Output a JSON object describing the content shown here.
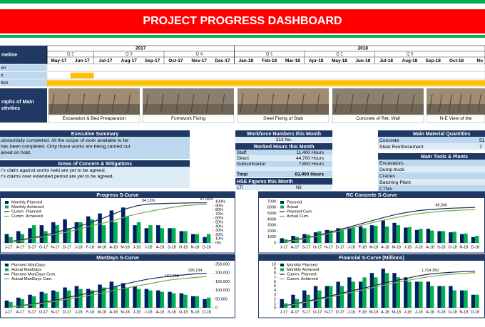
{
  "header": {
    "title": "PROJECT PROGRESS DASHBOARD"
  },
  "timeline": {
    "title": "meline",
    "years": [
      "2017",
      "2018"
    ],
    "quarters": [
      "Q 2",
      "Q 3",
      "Q 4",
      "Q 1",
      "Q 2",
      "Q 3"
    ],
    "months": [
      "May-17",
      "Jun-17",
      "Jul-17",
      "Aug-17",
      "Sep-17",
      "Oct-17",
      "Nov-17",
      "Dec-17",
      "Jan-18",
      "Feb-18",
      "Mar-18",
      "Apr-18",
      "May-18",
      "Jun-18",
      "Jul-18",
      "Aug-18",
      "Sep-18",
      "Oct-18",
      "No"
    ],
    "rows": [
      {
        "label": "on"
      },
      {
        "label": "n",
        "bar": [
          "Jun-17",
          "Jun-17"
        ]
      },
      {
        "label": "tion",
        "bar": [
          "May-17",
          "No"
        ]
      }
    ]
  },
  "photos": {
    "label": [
      "raphs of Main",
      "ctivities"
    ],
    "captions": [
      "Excavation & Bed Preaparaton",
      "Formwork Fixing",
      "Steel Fixing of Slab",
      "Concrete of Ret. Wall",
      "N-E View of the"
    ]
  },
  "summary": {
    "title": "Executive Summary",
    "lines": [
      "ubstantially completed. All the scope of work available to be",
      "has been completed. Only those works are being carried out",
      "ained on hold."
    ]
  },
  "concerns": {
    "title": "Areas of Concern & Mitigations",
    "lines": [
      "r's claim against works held are yet to be agreed.",
      "r's claims over extended period are yet to be agreed."
    ]
  },
  "workforce": {
    "title": "Workforce Numbers this Month",
    "value": "313 No.",
    "hours_title": "Worked Hours this Month",
    "hours": [
      [
        "Staff",
        "11,400 Hours"
      ],
      [
        "Direct",
        "44,700 Hours"
      ],
      [
        "Subcontractor",
        "7,800 Hours"
      ]
    ],
    "total": [
      "Total",
      "63,900 Hours"
    ],
    "hse_title": "HSE Figures this Month",
    "hse": [
      [
        "LTI",
        "Nil"
      ]
    ]
  },
  "materials": {
    "title": "Main Material Quantities",
    "rows": [
      [
        "Concrete",
        "51"
      ],
      [
        "Steel Reinforcement",
        "7"
      ]
    ]
  },
  "tools": {
    "title": "Main Tools & Plants",
    "items": [
      "Excavators",
      "Dump truck",
      "Cranes",
      "Batching Plant",
      "CTMs"
    ]
  },
  "chart_data": [
    {
      "type": "combo",
      "title": "Progress S-Curve",
      "categories": [
        "J-17",
        "A-17",
        "S-17",
        "O-17",
        "N-17",
        "D-17",
        "J-18",
        "F-18",
        "M-18",
        "A-18",
        "M-18",
        "J-18",
        "J-18",
        "A-18",
        "S-18",
        "O-18",
        "N-18",
        "D-18"
      ],
      "ylim": [
        0,
        14
      ],
      "y2lim": [
        0,
        100
      ],
      "y2ticks": [
        {
          "value": 0,
          "label": "0%"
        },
        {
          "value": 10,
          "label": "10%"
        },
        {
          "value": 20,
          "label": "20%"
        },
        {
          "value": 30,
          "label": "30%"
        },
        {
          "value": 40,
          "label": "40%"
        },
        {
          "value": 50,
          "label": "50%"
        },
        {
          "value": 60,
          "label": "60%"
        },
        {
          "value": 70,
          "label": "70%"
        },
        {
          "value": 80,
          "label": "80%"
        },
        {
          "value": 90,
          "label": "90%"
        },
        {
          "value": 100,
          "label": "100%"
        }
      ],
      "series": [
        {
          "name": "Monthly Planned",
          "mark": "bar",
          "color": "#002060",
          "values": [
            3,
            4,
            5,
            6,
            7,
            8,
            7,
            9,
            10,
            11,
            12,
            6,
            5,
            6,
            5,
            4,
            3,
            2
          ]
        },
        {
          "name": "Monthly Achieved",
          "mark": "bar",
          "color": "#00b050",
          "values": [
            2,
            3,
            6,
            4,
            6,
            5,
            7,
            8,
            6,
            7,
            9,
            7,
            6,
            5,
            5,
            4,
            3,
            3
          ]
        },
        {
          "name": "Cumm. Planned",
          "mark": "line",
          "axis": "y2",
          "color": "#1f1f5f",
          "values": [
            3,
            7,
            12,
            18,
            25,
            33,
            40,
            49,
            59,
            70,
            82,
            90,
            94.13,
            95,
            96,
            96.5,
            97,
            97.06
          ],
          "value_labels": [
            null,
            null,
            null,
            null,
            null,
            null,
            null,
            null,
            null,
            null,
            null,
            null,
            "94.13%",
            null,
            null,
            null,
            null,
            "97.06%"
          ]
        },
        {
          "name": "Cumm. Achieved",
          "mark": "line",
          "axis": "y2",
          "color": "#70ad47",
          "values": [
            2,
            5,
            11,
            15,
            21,
            26,
            33,
            41,
            47,
            54,
            63,
            70,
            76,
            81,
            86,
            90,
            92,
            94
          ]
        }
      ]
    },
    {
      "type": "combo",
      "title": "RC Concrete S-Curve",
      "categories": [
        "J-17",
        "A-17",
        "S-17",
        "O-17",
        "N-17",
        "D-17",
        "J-18",
        "F-18",
        "M-18",
        "A-18",
        "M-18",
        "J-18",
        "J-18",
        "A-18",
        "S-18",
        "O-18",
        "N-18",
        "D-18"
      ],
      "ylim": [
        0,
        7000
      ],
      "yticks": [
        0,
        1000,
        2000,
        3000,
        4000,
        5000,
        6000,
        7000
      ],
      "y2lim": [
        0,
        60000
      ],
      "series": [
        {
          "name": "Planned",
          "mark": "bar",
          "color": "#002060",
          "values": [
            800,
            1200,
            1500,
            1800,
            2200,
            2500,
            2600,
            2800,
            3000,
            3800,
            3400,
            2600,
            2200,
            2400,
            2000,
            1800,
            1500,
            1000
          ]
        },
        {
          "name": "Actual",
          "mark": "bar",
          "color": "#00b050",
          "values": [
            600,
            1000,
            1400,
            2000,
            2100,
            2300,
            2700,
            2500,
            2900,
            2800,
            3000,
            2700,
            2400,
            2100,
            2000,
            1900,
            1600,
            1200
          ]
        },
        {
          "name": "Planned Cum.",
          "mark": "line",
          "axis": "y2",
          "color": "#1f1f5f",
          "values": [
            2000,
            4500,
            7500,
            11000,
            15000,
            19500,
            24000,
            28500,
            33000,
            37500,
            41500,
            44500,
            47000,
            48500,
            49566,
            50500,
            51000,
            51500
          ],
          "value_labels": [
            null,
            null,
            null,
            null,
            null,
            null,
            null,
            null,
            null,
            null,
            null,
            null,
            null,
            null,
            "49,566",
            null,
            null,
            null
          ]
        },
        {
          "name": "Actual Cum.",
          "mark": "line",
          "axis": "y2",
          "color": "#70ad47",
          "values": [
            1500,
            3500,
            6500,
            10000,
            13500,
            17500,
            22000,
            26000,
            30000,
            33500,
            37000,
            40000,
            42500,
            44500,
            46000,
            47000,
            47800,
            48200
          ]
        }
      ]
    },
    {
      "type": "combo",
      "title": "ManDays S-Curve",
      "categories": [
        "J-17",
        "A-17",
        "S-17",
        "O-17",
        "N-17",
        "D-17",
        "J-18",
        "F-18",
        "M-18",
        "A-18",
        "M-18",
        "J-18",
        "J-18",
        "A-18",
        "S-18",
        "O-18",
        "N-18",
        "D-18"
      ],
      "ylim": [
        0,
        30000
      ],
      "y2lim": [
        0,
        250000
      ],
      "y2ticks": [
        0,
        {
          "value": 50000,
          "label": "50,000"
        },
        {
          "value": 100000,
          "label": "100,000"
        },
        {
          "value": 150000,
          "label": "150,000"
        },
        {
          "value": 200000,
          "label": "200,000"
        },
        {
          "value": 250000,
          "label": "250,000"
        }
      ],
      "series": [
        {
          "name": "Planned ManDays",
          "mark": "bar",
          "color": "#002060",
          "values": [
            5000,
            7000,
            9000,
            11000,
            12000,
            14000,
            15000,
            13000,
            16000,
            18000,
            17000,
            15000,
            13000,
            12000,
            11000,
            10000,
            8000,
            6000
          ]
        },
        {
          "name": "Actual ManDays",
          "mark": "bar",
          "color": "#00b050",
          "values": [
            4000,
            6000,
            8000,
            10000,
            11000,
            12000,
            13000,
            12000,
            14000,
            15000,
            14000,
            13000,
            12000,
            11000,
            10000,
            9000,
            8000,
            7000
          ]
        },
        {
          "name": "Planned ManDays Cum.",
          "mark": "line",
          "axis": "y2",
          "color": "#1f1f5f",
          "values": [
            5000,
            12000,
            21000,
            32000,
            44000,
            58000,
            73000,
            86000,
            102000,
            120000,
            137000,
            152000,
            165000,
            175000,
            183000,
            189000,
            195134,
            198000
          ],
          "value_labels": [
            null,
            null,
            null,
            null,
            null,
            null,
            null,
            null,
            null,
            null,
            null,
            null,
            null,
            null,
            null,
            null,
            "195,134",
            null
          ]
        },
        {
          "name": "Actual ManDays Cum.",
          "mark": "line",
          "axis": "y2",
          "color": "#70ad47",
          "values": [
            4000,
            10000,
            18000,
            27000,
            37000,
            49000,
            61000,
            72000,
            85000,
            99000,
            112000,
            125000,
            137000,
            150000,
            161208,
            168000,
            174000,
            180000
          ],
          "value_labels": [
            null,
            null,
            null,
            null,
            null,
            null,
            null,
            null,
            null,
            null,
            null,
            null,
            null,
            null,
            "161,208",
            null,
            null,
            null
          ]
        }
      ]
    },
    {
      "type": "combo",
      "title": "Financial S-Curve (Millions)",
      "categories": [
        "J-17",
        "A-17",
        "S-17",
        "O-17",
        "N-17",
        "D-17",
        "J-18",
        "F-18",
        "M-18",
        "A-18",
        "M-18",
        "J-18",
        "J-18",
        "A-18",
        "S-18",
        "O-18",
        "N-18",
        "D-18"
      ],
      "ylim": [
        0,
        10
      ],
      "yticks": [
        0,
        1,
        2,
        3,
        4,
        5,
        6,
        7,
        8,
        9,
        10
      ],
      "y2lim": [
        0,
        2200
      ],
      "series": [
        {
          "name": "Monthly Planned",
          "mark": "bar",
          "color": "#002060",
          "values": [
            2,
            3,
            4,
            5,
            5,
            6,
            7,
            6,
            8,
            9,
            8,
            7,
            6,
            6,
            5,
            5,
            4,
            3
          ]
        },
        {
          "name": "Monthly Achieved",
          "mark": "bar",
          "color": "#00b050",
          "values": [
            1,
            2,
            3,
            4,
            5,
            5,
            6,
            7,
            7,
            8,
            7,
            6,
            6,
            5,
            5,
            4,
            4,
            3
          ]
        },
        {
          "name": "Cumm. Planned",
          "mark": "line",
          "axis": "y2",
          "color": "#1f1f5f",
          "values": [
            100,
            200,
            320,
            450,
            580,
            720,
            860,
            980,
            1120,
            1260,
            1380,
            1500,
            1620,
            1714.35,
            1760,
            1800,
            1830,
            1850
          ],
          "value_labels": [
            null,
            null,
            null,
            null,
            null,
            null,
            null,
            null,
            null,
            null,
            null,
            null,
            null,
            "1,714.350",
            null,
            null,
            null,
            null
          ]
        },
        {
          "name": "Cumm. Achieved",
          "mark": "line",
          "axis": "y2",
          "color": "#70ad47",
          "values": [
            80,
            170,
            280,
            400,
            520,
            650,
            780,
            900,
            1030,
            1160,
            1280,
            1390,
            1490,
            1580,
            1650,
            1700,
            1740,
            1780
          ]
        }
      ]
    }
  ]
}
